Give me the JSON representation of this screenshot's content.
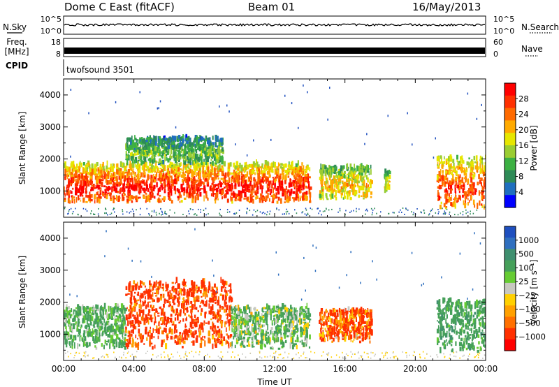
{
  "header": {
    "title": "Dome C East (fitACF)",
    "beam": "Beam 01",
    "date": "16/May/2013"
  },
  "status_panels": {
    "nsky_label": "N.Sky",
    "nsearch_label": "N.Search",
    "nsky_ticks": [
      "10^5",
      "10^0"
    ],
    "freq_label": "Freq.",
    "freq_unit": "[MHz]",
    "freq_ticks": [
      "18",
      "8"
    ],
    "nave_label": "Nave",
    "nave_ticks": [
      "60",
      "0"
    ],
    "cpid_label": "CPID",
    "cpid_value": "twofsound 3501"
  },
  "chart_data": [
    {
      "type": "heatmap",
      "name": "power",
      "ylabel": "Slant Range [km]",
      "xlabel": "",
      "ylim": [
        180,
        4500
      ],
      "yticks": [
        1000,
        2000,
        3000,
        4000
      ],
      "xlim_hours": [
        0,
        24
      ],
      "colorbar": {
        "label": "Power [dB]",
        "ticks": [
          "28",
          "24",
          "20",
          "16",
          "12",
          "8",
          "4"
        ],
        "colors": [
          "#ff0000",
          "#ff3000",
          "#ff6a00",
          "#ffaa00",
          "#e6e600",
          "#9acd32",
          "#3cb043",
          "#2e8b57",
          "#1f6fbf",
          "#0000ff"
        ]
      },
      "echo_regions": [
        {
          "t_start": 0.0,
          "t_end": 14.0,
          "range_min": 600,
          "range_max": 1800,
          "level_db": 26
        },
        {
          "t_start": 3.5,
          "t_end": 9.0,
          "range_min": 1800,
          "range_max": 2600,
          "level_db": 12
        },
        {
          "t_start": 14.5,
          "t_end": 17.5,
          "range_min": 700,
          "range_max": 1700,
          "level_db": 18
        },
        {
          "t_start": 18.2,
          "t_end": 18.5,
          "range_min": 900,
          "range_max": 1600,
          "level_db": 16
        },
        {
          "t_start": 21.2,
          "t_end": 24.0,
          "range_min": 400,
          "range_max": 2000,
          "level_db": 24
        }
      ]
    },
    {
      "type": "heatmap",
      "name": "velocity",
      "ylabel": "Slant Range [km]",
      "xlabel": "Time UT",
      "ylim": [
        180,
        4500
      ],
      "yticks": [
        1000,
        2000,
        3000,
        4000
      ],
      "xticks": [
        "00:00",
        "04:00",
        "08:00",
        "12:00",
        "16:00",
        "20:00",
        "00:00"
      ],
      "xlim_hours": [
        0,
        24
      ],
      "colorbar": {
        "label": "Velocity [m s⁻¹]",
        "ticks": [
          "1000",
          "500",
          "100",
          "25",
          "−25",
          "−100",
          "−500",
          "−1000"
        ],
        "colors": [
          "#1e4fbf",
          "#2f6fbf",
          "#3f8f6f",
          "#46a05a",
          "#66cc33",
          "#c8c8c0",
          "#ffd000",
          "#ffa000",
          "#ff7000",
          "#ff3000",
          "#ff0000"
        ]
      },
      "echo_regions": [
        {
          "t_start": 0.0,
          "t_end": 3.5,
          "range_min": 500,
          "range_max": 1800,
          "velocity": 150
        },
        {
          "t_start": 3.5,
          "t_end": 9.5,
          "range_min": 500,
          "range_max": 2600,
          "velocity": -150
        },
        {
          "t_start": 9.5,
          "t_end": 14.0,
          "range_min": 500,
          "range_max": 1800,
          "velocity": 100
        },
        {
          "t_start": 14.5,
          "t_end": 17.5,
          "range_min": 700,
          "range_max": 1700,
          "velocity": -120
        },
        {
          "t_start": 21.2,
          "t_end": 24.0,
          "range_min": 400,
          "range_max": 2000,
          "velocity": 200
        }
      ]
    }
  ]
}
